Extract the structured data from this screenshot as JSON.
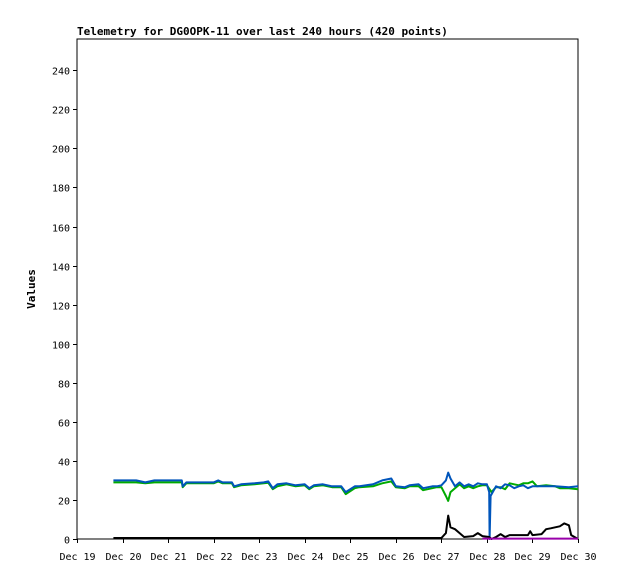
{
  "chart_data": {
    "type": "line",
    "title": "Telemetry for DG0OPK-11 over last 240 hours (420 points)",
    "ylabel": "Values",
    "xlabel": "",
    "ylim": [
      0,
      256
    ],
    "yticks": [
      0,
      20,
      40,
      60,
      80,
      100,
      120,
      140,
      160,
      180,
      200,
      220,
      240
    ],
    "xticks": [
      "Dec 19",
      "Dec 20",
      "Dec 21",
      "Dec 22",
      "Dec 23",
      "Dec 24",
      "Dec 25",
      "Dec 26",
      "Dec 27",
      "Dec 28",
      "Dec 29",
      "Dec 30"
    ],
    "x_unit": "days from Dec 19",
    "grid": false,
    "legend": "none",
    "series": [
      {
        "color": "#00aa00",
        "points": [
          [
            0.8,
            29
          ],
          [
            1.3,
            29
          ],
          [
            1.5,
            28.5
          ],
          [
            1.7,
            29
          ],
          [
            2.3,
            29
          ],
          [
            2.32,
            26.5
          ],
          [
            2.4,
            28.5
          ],
          [
            3.0,
            28.5
          ],
          [
            3.1,
            29.5
          ],
          [
            3.2,
            28.5
          ],
          [
            3.4,
            28.5
          ],
          [
            3.45,
            26.5
          ],
          [
            3.6,
            27.5
          ],
          [
            3.9,
            28
          ],
          [
            4.1,
            28.5
          ],
          [
            4.2,
            28.8
          ],
          [
            4.3,
            25.5
          ],
          [
            4.4,
            27
          ],
          [
            4.6,
            28
          ],
          [
            4.8,
            27
          ],
          [
            5.0,
            27.5
          ],
          [
            5.1,
            25.5
          ],
          [
            5.2,
            27
          ],
          [
            5.4,
            27.5
          ],
          [
            5.6,
            26.5
          ],
          [
            5.8,
            26.5
          ],
          [
            5.9,
            23
          ],
          [
            6.1,
            26
          ],
          [
            6.2,
            26.5
          ],
          [
            6.5,
            27
          ],
          [
            6.7,
            28.5
          ],
          [
            6.9,
            29.5
          ],
          [
            7.0,
            26.5
          ],
          [
            7.2,
            26
          ],
          [
            7.3,
            27
          ],
          [
            7.5,
            27
          ],
          [
            7.6,
            25
          ],
          [
            7.8,
            26
          ],
          [
            7.9,
            26.5
          ],
          [
            8.0,
            26.5
          ],
          [
            8.1,
            22
          ],
          [
            8.15,
            19.5
          ],
          [
            8.2,
            24
          ],
          [
            8.3,
            26
          ],
          [
            8.4,
            28
          ],
          [
            8.5,
            26
          ],
          [
            8.6,
            27
          ],
          [
            8.7,
            26
          ],
          [
            8.8,
            27
          ],
          [
            8.9,
            27.5
          ],
          [
            9.0,
            27.5
          ],
          [
            9.1,
            24
          ],
          [
            9.2,
            26.5
          ],
          [
            9.3,
            26.5
          ],
          [
            9.4,
            25.5
          ],
          [
            9.5,
            28.5
          ],
          [
            9.6,
            28
          ],
          [
            9.7,
            27.5
          ],
          [
            9.8,
            28.5
          ],
          [
            9.9,
            28.5
          ],
          [
            10.0,
            29.5
          ],
          [
            10.1,
            27
          ],
          [
            10.3,
            27.5
          ],
          [
            10.5,
            27
          ],
          [
            10.6,
            26
          ],
          [
            10.8,
            26
          ],
          [
            11.0,
            25.5
          ]
        ]
      },
      {
        "color": "#0055bb",
        "points": [
          [
            0.8,
            30
          ],
          [
            1.3,
            30
          ],
          [
            1.5,
            29
          ],
          [
            1.7,
            30
          ],
          [
            2.3,
            30
          ],
          [
            2.32,
            27
          ],
          [
            2.4,
            29
          ],
          [
            3.0,
            29
          ],
          [
            3.1,
            30
          ],
          [
            3.2,
            29
          ],
          [
            3.4,
            29
          ],
          [
            3.45,
            27
          ],
          [
            3.6,
            28
          ],
          [
            3.9,
            28.5
          ],
          [
            4.1,
            29
          ],
          [
            4.2,
            29.5
          ],
          [
            4.3,
            26
          ],
          [
            4.4,
            28
          ],
          [
            4.6,
            28.5
          ],
          [
            4.8,
            27.5
          ],
          [
            5.0,
            28
          ],
          [
            5.1,
            26
          ],
          [
            5.2,
            27.5
          ],
          [
            5.4,
            28
          ],
          [
            5.6,
            27
          ],
          [
            5.8,
            27
          ],
          [
            5.9,
            24
          ],
          [
            6.1,
            27
          ],
          [
            6.2,
            27
          ],
          [
            6.5,
            28
          ],
          [
            6.7,
            30
          ],
          [
            6.9,
            31
          ],
          [
            7.0,
            27
          ],
          [
            7.2,
            26.5
          ],
          [
            7.3,
            27.5
          ],
          [
            7.5,
            28
          ],
          [
            7.6,
            26
          ],
          [
            7.8,
            27
          ],
          [
            7.9,
            27
          ],
          [
            8.0,
            27.5
          ],
          [
            8.1,
            30
          ],
          [
            8.15,
            34
          ],
          [
            8.2,
            31
          ],
          [
            8.3,
            27
          ],
          [
            8.4,
            29
          ],
          [
            8.5,
            27
          ],
          [
            8.6,
            28
          ],
          [
            8.7,
            27
          ],
          [
            8.8,
            28.5
          ],
          [
            8.9,
            28
          ],
          [
            9.0,
            28
          ],
          [
            9.05,
            24
          ],
          [
            9.06,
            0
          ],
          [
            9.08,
            22
          ],
          [
            9.2,
            27
          ],
          [
            9.3,
            26
          ],
          [
            9.4,
            28
          ],
          [
            9.5,
            27.5
          ],
          [
            9.6,
            26
          ],
          [
            9.7,
            27
          ],
          [
            9.8,
            27.5
          ],
          [
            9.9,
            26
          ],
          [
            10.0,
            27
          ],
          [
            10.2,
            27
          ],
          [
            10.5,
            27
          ],
          [
            10.8,
            26.5
          ],
          [
            11.0,
            27
          ]
        ]
      },
      {
        "color": "#000000",
        "points": [
          [
            0.8,
            0.5
          ],
          [
            8.0,
            0.5
          ],
          [
            8.1,
            3
          ],
          [
            8.15,
            12
          ],
          [
            8.2,
            6
          ],
          [
            8.3,
            5
          ],
          [
            8.4,
            3
          ],
          [
            8.5,
            1
          ],
          [
            8.7,
            1.5
          ],
          [
            8.8,
            3
          ],
          [
            8.9,
            1.5
          ],
          [
            9.05,
            1
          ],
          [
            9.1,
            0
          ],
          [
            9.2,
            1
          ],
          [
            9.3,
            2.5
          ],
          [
            9.4,
            1
          ],
          [
            9.5,
            2
          ],
          [
            9.9,
            2
          ],
          [
            9.95,
            4
          ],
          [
            10.0,
            2
          ],
          [
            10.2,
            2.5
          ],
          [
            10.3,
            5
          ],
          [
            10.4,
            5.5
          ],
          [
            10.6,
            6.5
          ],
          [
            10.7,
            8
          ],
          [
            10.8,
            7
          ],
          [
            10.85,
            2
          ],
          [
            11.0,
            0
          ]
        ]
      },
      {
        "color": "#9900aa",
        "points": [
          [
            8.9,
            0.2
          ],
          [
            11.0,
            0.2
          ]
        ]
      }
    ]
  }
}
